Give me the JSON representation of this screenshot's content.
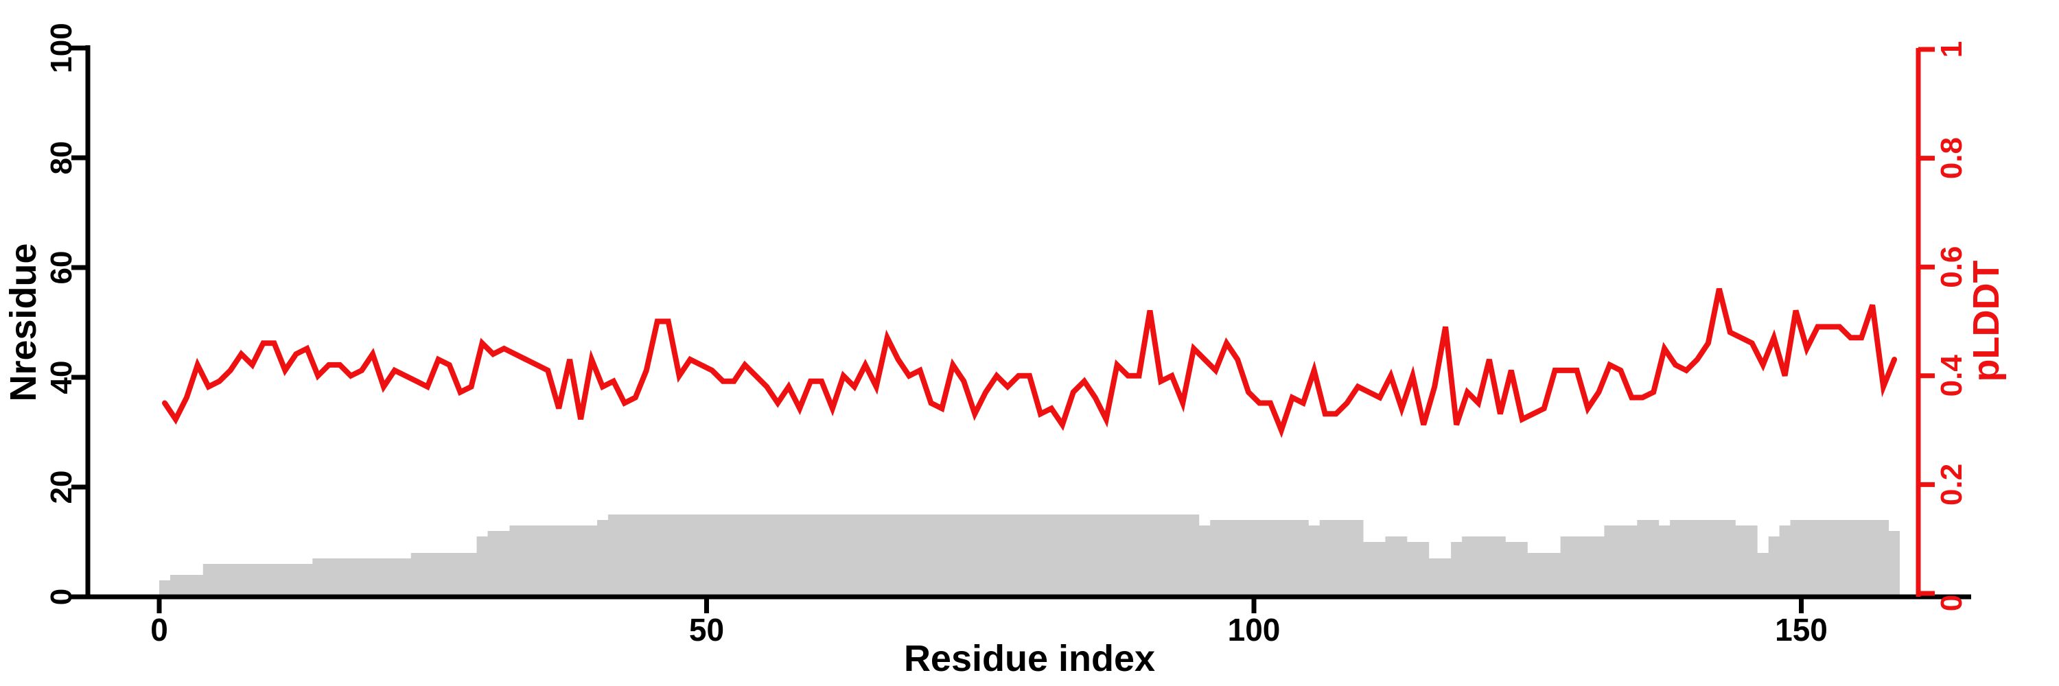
{
  "labels": {
    "x_axis": "Residue index",
    "y_left": "Nresidue",
    "y_right": "pLDDT"
  },
  "colors": {
    "line": "#ee1111",
    "right_axis": "#ee1111",
    "bars": "#cccccc",
    "axis": "#000000",
    "background": "#ffffff"
  },
  "chart_data": {
    "type": "line",
    "title": "",
    "xlabel": "Residue index",
    "grid": false,
    "legend": "none",
    "x_axis": {
      "ticks": [
        0,
        50,
        100,
        150
      ],
      "tick_labels": [
        "0",
        "50",
        "100",
        "150"
      ],
      "range_shown": [
        0,
        165
      ]
    },
    "left_axis": {
      "label": "Nresidue",
      "ticks": [
        0,
        20,
        40,
        60,
        80,
        100
      ],
      "tick_labels": [
        "0",
        "20",
        "40",
        "60",
        "80",
        "100"
      ],
      "lim": [
        0,
        100
      ],
      "tick_labels_rotated": true,
      "color": "#000000"
    },
    "right_axis": {
      "label": "pLDDT",
      "ticks": [
        0,
        0.2,
        0.4,
        0.6,
        0.8,
        1
      ],
      "tick_labels": [
        "0",
        "0.2",
        "0.4",
        "0.6",
        "0.8",
        "1"
      ],
      "lim": [
        0,
        1
      ],
      "tick_labels_rotated": true,
      "color": "#ee1111"
    },
    "series": [
      {
        "name": "pLDDT",
        "type": "line",
        "axis": "right",
        "color": "#ee1111",
        "x_start": 1,
        "values": [
          0.35,
          0.32,
          0.36,
          0.42,
          0.38,
          0.39,
          0.41,
          0.44,
          0.42,
          0.46,
          0.46,
          0.41,
          0.44,
          0.45,
          0.4,
          0.42,
          0.42,
          0.4,
          0.41,
          0.44,
          0.38,
          0.41,
          0.4,
          0.39,
          0.38,
          0.43,
          0.42,
          0.37,
          0.38,
          0.46,
          0.44,
          0.45,
          0.44,
          0.43,
          0.42,
          0.41,
          0.34,
          0.43,
          0.32,
          0.43,
          0.38,
          0.39,
          0.35,
          0.36,
          0.41,
          0.5,
          0.5,
          0.4,
          0.43,
          0.42,
          0.41,
          0.39,
          0.39,
          0.42,
          0.4,
          0.38,
          0.35,
          0.38,
          0.34,
          0.39,
          0.39,
          0.34,
          0.4,
          0.38,
          0.42,
          0.38,
          0.47,
          0.43,
          0.4,
          0.41,
          0.35,
          0.34,
          0.42,
          0.39,
          0.33,
          0.37,
          0.4,
          0.38,
          0.4,
          0.4,
          0.33,
          0.34,
          0.31,
          0.37,
          0.39,
          0.36,
          0.32,
          0.42,
          0.4,
          0.4,
          0.52,
          0.39,
          0.4,
          0.35,
          0.45,
          0.43,
          0.41,
          0.46,
          0.43,
          0.37,
          0.35,
          0.35,
          0.3,
          0.36,
          0.35,
          0.41,
          0.33,
          0.33,
          0.35,
          0.38,
          0.37,
          0.36,
          0.4,
          0.34,
          0.4,
          0.31,
          0.38,
          0.49,
          0.31,
          0.37,
          0.35,
          0.43,
          0.33,
          0.41,
          0.32,
          0.33,
          0.34,
          0.41,
          0.41,
          0.41,
          0.34,
          0.37,
          0.42,
          0.41,
          0.36,
          0.36,
          0.37,
          0.45,
          0.42,
          0.41,
          0.43,
          0.46,
          0.56,
          0.48,
          0.47,
          0.46,
          0.42,
          0.47,
          0.4,
          0.52,
          0.45,
          0.49,
          0.49,
          0.49,
          0.47,
          0.47,
          0.53,
          0.38,
          0.43
        ]
      },
      {
        "name": "Nresidue",
        "type": "step-bars",
        "axis": "left",
        "color": "#cccccc",
        "x_start": 1,
        "values": [
          3,
          4,
          4,
          4,
          6,
          6,
          6,
          6,
          6,
          6,
          6,
          6,
          6,
          6,
          7,
          7,
          7,
          7,
          7,
          7,
          7,
          7,
          7,
          8,
          8,
          8,
          8,
          8,
          8,
          11,
          12,
          12,
          13,
          13,
          13,
          13,
          13,
          13,
          13,
          13,
          14,
          15,
          15,
          15,
          15,
          15,
          15,
          15,
          15,
          15,
          15,
          15,
          15,
          15,
          15,
          15,
          15,
          15,
          15,
          15,
          15,
          15,
          15,
          15,
          15,
          15,
          15,
          15,
          15,
          15,
          15,
          15,
          15,
          15,
          15,
          15,
          15,
          15,
          15,
          15,
          15,
          15,
          15,
          15,
          15,
          15,
          15,
          15,
          15,
          15,
          15,
          15,
          15,
          15,
          15,
          13,
          14,
          14,
          14,
          14,
          14,
          14,
          14,
          14,
          14,
          13,
          14,
          14,
          14,
          14,
          10,
          10,
          11,
          11,
          10,
          10,
          7,
          7,
          10,
          11,
          11,
          11,
          11,
          10,
          10,
          8,
          8,
          8,
          11,
          11,
          11,
          11,
          13,
          13,
          13,
          14,
          14,
          13,
          14,
          14,
          14,
          14,
          14,
          14,
          13,
          13,
          8,
          11,
          13,
          14,
          14,
          14,
          14,
          14,
          14,
          14,
          14,
          14,
          12
        ]
      }
    ]
  }
}
